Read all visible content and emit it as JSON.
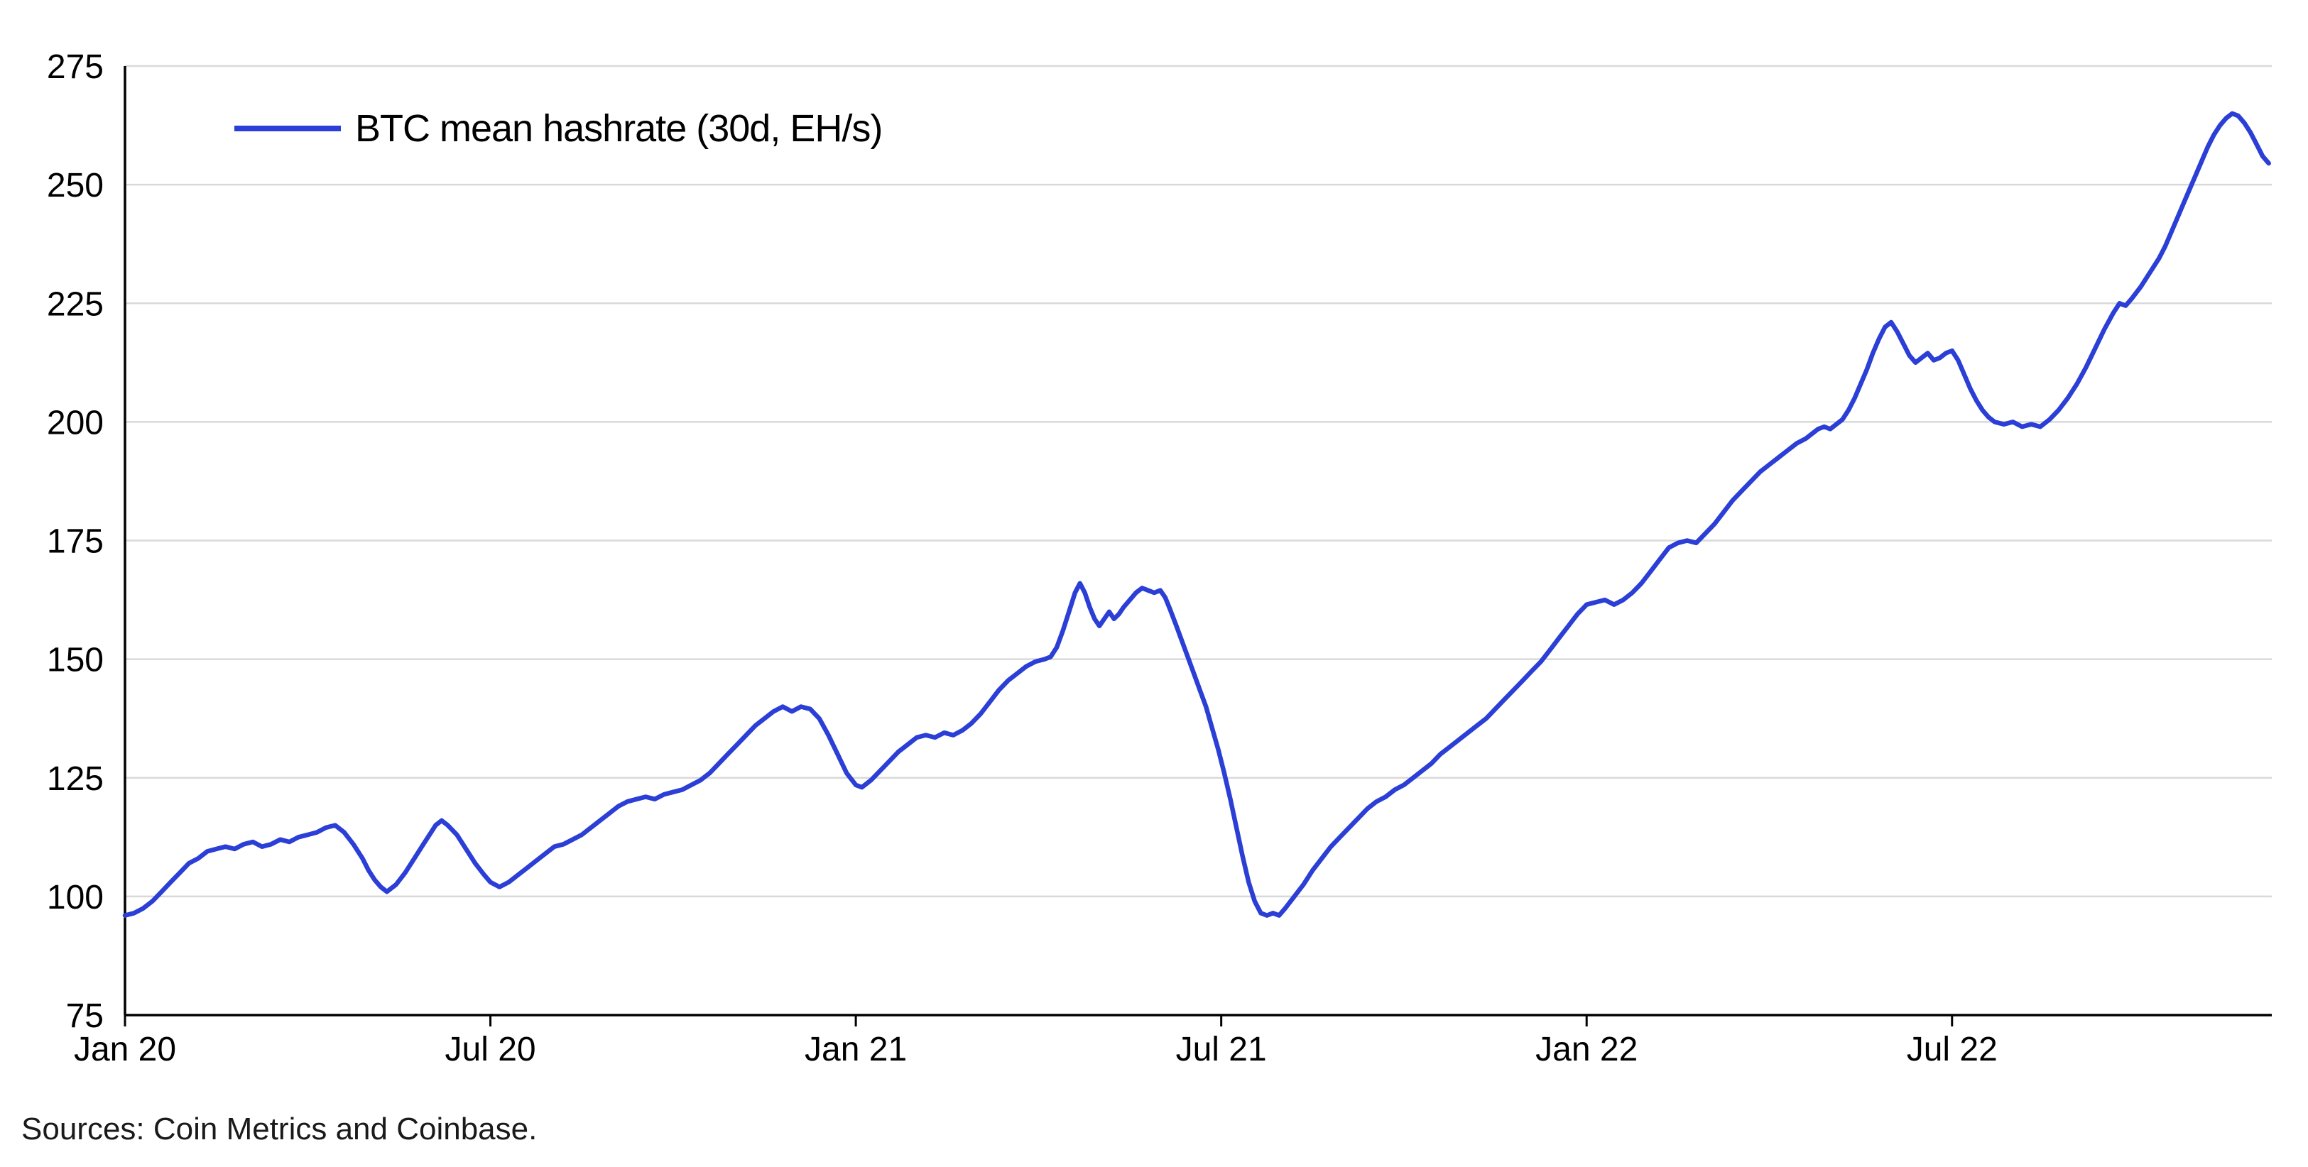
{
  "chart_data": {
    "type": "line",
    "title": "",
    "xlabel": "",
    "ylabel": "",
    "x_unit": "months since Jan 2020",
    "y_unit": "EH/s",
    "xlim": [
      0,
      35.25
    ],
    "ylim": [
      75,
      275
    ],
    "grid": "horizontal",
    "legend_position": "top-left",
    "colors": {
      "line": "#2b3fd6",
      "gridline": "#d9d9d9",
      "axis": "#000000",
      "text": "#000000"
    },
    "y_ticks": [
      75,
      100,
      125,
      150,
      175,
      200,
      225,
      250,
      275
    ],
    "x_ticks": [
      {
        "m": 0,
        "label": "Jan 20"
      },
      {
        "m": 6,
        "label": "Jul 20"
      },
      {
        "m": 12,
        "label": "Jan 21"
      },
      {
        "m": 18,
        "label": "Jul 21"
      },
      {
        "m": 24,
        "label": "Jan 22"
      },
      {
        "m": 30,
        "label": "Jul 22"
      }
    ],
    "source_note": "Sources: Coin Metrics and Coinbase.",
    "series": [
      {
        "name": "BTC mean hashrate (30d, EH/s)",
        "color": "#2b3fd6",
        "points": [
          [
            0,
            96
          ],
          [
            0.15,
            96.5
          ],
          [
            0.3,
            97.5
          ],
          [
            0.45,
            99
          ],
          [
            0.6,
            101
          ],
          [
            0.75,
            103
          ],
          [
            0.9,
            105
          ],
          [
            1.05,
            107
          ],
          [
            1.2,
            108
          ],
          [
            1.35,
            109.5
          ],
          [
            1.5,
            110
          ],
          [
            1.65,
            110.5
          ],
          [
            1.8,
            110
          ],
          [
            1.95,
            111
          ],
          [
            2.1,
            111.5
          ],
          [
            2.25,
            110.5
          ],
          [
            2.4,
            111
          ],
          [
            2.55,
            112
          ],
          [
            2.7,
            111.5
          ],
          [
            2.85,
            112.5
          ],
          [
            3,
            113
          ],
          [
            3.15,
            113.5
          ],
          [
            3.3,
            114.5
          ],
          [
            3.45,
            115
          ],
          [
            3.6,
            113.5
          ],
          [
            3.75,
            111
          ],
          [
            3.9,
            108
          ],
          [
            4,
            105.5
          ],
          [
            4.1,
            103.5
          ],
          [
            4.2,
            102
          ],
          [
            4.3,
            101
          ],
          [
            4.45,
            102.5
          ],
          [
            4.6,
            105
          ],
          [
            4.75,
            108
          ],
          [
            4.9,
            111
          ],
          [
            5,
            113
          ],
          [
            5.1,
            115
          ],
          [
            5.2,
            116
          ],
          [
            5.3,
            115
          ],
          [
            5.45,
            113
          ],
          [
            5.6,
            110
          ],
          [
            5.75,
            107
          ],
          [
            5.9,
            104.5
          ],
          [
            6,
            103
          ],
          [
            6.15,
            102
          ],
          [
            6.3,
            103
          ],
          [
            6.45,
            104.5
          ],
          [
            6.6,
            106
          ],
          [
            6.75,
            107.5
          ],
          [
            6.9,
            109
          ],
          [
            7.05,
            110.5
          ],
          [
            7.2,
            111
          ],
          [
            7.35,
            112
          ],
          [
            7.5,
            113
          ],
          [
            7.65,
            114.5
          ],
          [
            7.8,
            116
          ],
          [
            7.95,
            117.5
          ],
          [
            8.1,
            119
          ],
          [
            8.25,
            120
          ],
          [
            8.4,
            120.5
          ],
          [
            8.55,
            121
          ],
          [
            8.7,
            120.5
          ],
          [
            8.85,
            121.5
          ],
          [
            9,
            122
          ],
          [
            9.15,
            122.5
          ],
          [
            9.3,
            123.5
          ],
          [
            9.45,
            124.5
          ],
          [
            9.6,
            126
          ],
          [
            9.75,
            128
          ],
          [
            9.9,
            130
          ],
          [
            10.05,
            132
          ],
          [
            10.2,
            134
          ],
          [
            10.35,
            136
          ],
          [
            10.5,
            137.5
          ],
          [
            10.65,
            139
          ],
          [
            10.8,
            140
          ],
          [
            10.95,
            139
          ],
          [
            11.1,
            140
          ],
          [
            11.25,
            139.5
          ],
          [
            11.4,
            137.5
          ],
          [
            11.55,
            134
          ],
          [
            11.7,
            130
          ],
          [
            11.85,
            126
          ],
          [
            12,
            123.5
          ],
          [
            12.1,
            123
          ],
          [
            12.25,
            124.5
          ],
          [
            12.4,
            126.5
          ],
          [
            12.55,
            128.5
          ],
          [
            12.7,
            130.5
          ],
          [
            12.85,
            132
          ],
          [
            13,
            133.5
          ],
          [
            13.15,
            134
          ],
          [
            13.3,
            133.5
          ],
          [
            13.45,
            134.5
          ],
          [
            13.6,
            134
          ],
          [
            13.75,
            135
          ],
          [
            13.9,
            136.5
          ],
          [
            14.05,
            138.5
          ],
          [
            14.2,
            141
          ],
          [
            14.35,
            143.5
          ],
          [
            14.5,
            145.5
          ],
          [
            14.65,
            147
          ],
          [
            14.8,
            148.5
          ],
          [
            14.95,
            149.5
          ],
          [
            15.1,
            150
          ],
          [
            15.2,
            150.5
          ],
          [
            15.3,
            152.5
          ],
          [
            15.4,
            156
          ],
          [
            15.5,
            160
          ],
          [
            15.6,
            164
          ],
          [
            15.68,
            166
          ],
          [
            15.76,
            164
          ],
          [
            15.84,
            161
          ],
          [
            15.92,
            158.5
          ],
          [
            16,
            157
          ],
          [
            16.08,
            158.5
          ],
          [
            16.16,
            160
          ],
          [
            16.24,
            158.5
          ],
          [
            16.32,
            159.5
          ],
          [
            16.4,
            161
          ],
          [
            16.5,
            162.5
          ],
          [
            16.6,
            164
          ],
          [
            16.7,
            165
          ],
          [
            16.8,
            164.5
          ],
          [
            16.9,
            164
          ],
          [
            17,
            164.5
          ],
          [
            17.08,
            163
          ],
          [
            17.16,
            160.5
          ],
          [
            17.25,
            157.5
          ],
          [
            17.35,
            154
          ],
          [
            17.45,
            150.5
          ],
          [
            17.55,
            147
          ],
          [
            17.65,
            143.5
          ],
          [
            17.75,
            140
          ],
          [
            17.85,
            135.5
          ],
          [
            17.95,
            131
          ],
          [
            18.05,
            126
          ],
          [
            18.15,
            120.5
          ],
          [
            18.25,
            114.5
          ],
          [
            18.35,
            108.5
          ],
          [
            18.45,
            103
          ],
          [
            18.55,
            99
          ],
          [
            18.65,
            96.5
          ],
          [
            18.75,
            96
          ],
          [
            18.85,
            96.5
          ],
          [
            18.95,
            96
          ],
          [
            19.05,
            97.5
          ],
          [
            19.2,
            100
          ],
          [
            19.35,
            102.5
          ],
          [
            19.5,
            105.5
          ],
          [
            19.65,
            108
          ],
          [
            19.8,
            110.5
          ],
          [
            19.95,
            112.5
          ],
          [
            20.1,
            114.5
          ],
          [
            20.25,
            116.5
          ],
          [
            20.4,
            118.5
          ],
          [
            20.55,
            120
          ],
          [
            20.7,
            121
          ],
          [
            20.85,
            122.5
          ],
          [
            21,
            123.5
          ],
          [
            21.15,
            125
          ],
          [
            21.3,
            126.5
          ],
          [
            21.45,
            128
          ],
          [
            21.6,
            130
          ],
          [
            21.75,
            131.5
          ],
          [
            21.9,
            133
          ],
          [
            22.05,
            134.5
          ],
          [
            22.2,
            136
          ],
          [
            22.35,
            137.5
          ],
          [
            22.5,
            139.5
          ],
          [
            22.65,
            141.5
          ],
          [
            22.8,
            143.5
          ],
          [
            22.95,
            145.5
          ],
          [
            23.1,
            147.5
          ],
          [
            23.25,
            149.5
          ],
          [
            23.4,
            152
          ],
          [
            23.55,
            154.5
          ],
          [
            23.7,
            157
          ],
          [
            23.85,
            159.5
          ],
          [
            24,
            161.5
          ],
          [
            24.15,
            162
          ],
          [
            24.3,
            162.5
          ],
          [
            24.45,
            161.5
          ],
          [
            24.6,
            162.5
          ],
          [
            24.75,
            164
          ],
          [
            24.9,
            166
          ],
          [
            25.05,
            168.5
          ],
          [
            25.2,
            171
          ],
          [
            25.35,
            173.5
          ],
          [
            25.5,
            174.5
          ],
          [
            25.65,
            175
          ],
          [
            25.8,
            174.5
          ],
          [
            25.95,
            176.5
          ],
          [
            26.1,
            178.5
          ],
          [
            26.25,
            181
          ],
          [
            26.4,
            183.5
          ],
          [
            26.55,
            185.5
          ],
          [
            26.7,
            187.5
          ],
          [
            26.85,
            189.5
          ],
          [
            27,
            191
          ],
          [
            27.15,
            192.5
          ],
          [
            27.3,
            194
          ],
          [
            27.45,
            195.5
          ],
          [
            27.6,
            196.5
          ],
          [
            27.7,
            197.5
          ],
          [
            27.8,
            198.5
          ],
          [
            27.9,
            199
          ],
          [
            28,
            198.5
          ],
          [
            28.1,
            199.5
          ],
          [
            28.2,
            200.5
          ],
          [
            28.3,
            202.5
          ],
          [
            28.4,
            205
          ],
          [
            28.5,
            208
          ],
          [
            28.6,
            211
          ],
          [
            28.7,
            214.5
          ],
          [
            28.8,
            217.5
          ],
          [
            28.9,
            220
          ],
          [
            29,
            221
          ],
          [
            29.1,
            219
          ],
          [
            29.2,
            216.5
          ],
          [
            29.3,
            214
          ],
          [
            29.4,
            212.5
          ],
          [
            29.5,
            213.5
          ],
          [
            29.6,
            214.5
          ],
          [
            29.7,
            213
          ],
          [
            29.8,
            213.5
          ],
          [
            29.9,
            214.5
          ],
          [
            30,
            215
          ],
          [
            30.1,
            213
          ],
          [
            30.2,
            210
          ],
          [
            30.3,
            207
          ],
          [
            30.4,
            204.5
          ],
          [
            30.5,
            202.5
          ],
          [
            30.6,
            201
          ],
          [
            30.7,
            200
          ],
          [
            30.85,
            199.5
          ],
          [
            31,
            200
          ],
          [
            31.15,
            199
          ],
          [
            31.3,
            199.5
          ],
          [
            31.45,
            199
          ],
          [
            31.6,
            200.5
          ],
          [
            31.75,
            202.5
          ],
          [
            31.9,
            205
          ],
          [
            32.05,
            208
          ],
          [
            32.2,
            211.5
          ],
          [
            32.35,
            215.5
          ],
          [
            32.5,
            219.5
          ],
          [
            32.65,
            223
          ],
          [
            32.75,
            225
          ],
          [
            32.85,
            224.5
          ],
          [
            32.95,
            226
          ],
          [
            33.1,
            228.5
          ],
          [
            33.25,
            231.5
          ],
          [
            33.4,
            234.5
          ],
          [
            33.5,
            237
          ],
          [
            33.6,
            240
          ],
          [
            33.7,
            243
          ],
          [
            33.8,
            246
          ],
          [
            33.9,
            249
          ],
          [
            34,
            252
          ],
          [
            34.1,
            255
          ],
          [
            34.2,
            258
          ],
          [
            34.3,
            260.5
          ],
          [
            34.4,
            262.5
          ],
          [
            34.5,
            264
          ],
          [
            34.6,
            265
          ],
          [
            34.7,
            264.5
          ],
          [
            34.8,
            263
          ],
          [
            34.9,
            261
          ],
          [
            35,
            258.5
          ],
          [
            35.1,
            256
          ],
          [
            35.2,
            254.5
          ]
        ]
      }
    ]
  }
}
